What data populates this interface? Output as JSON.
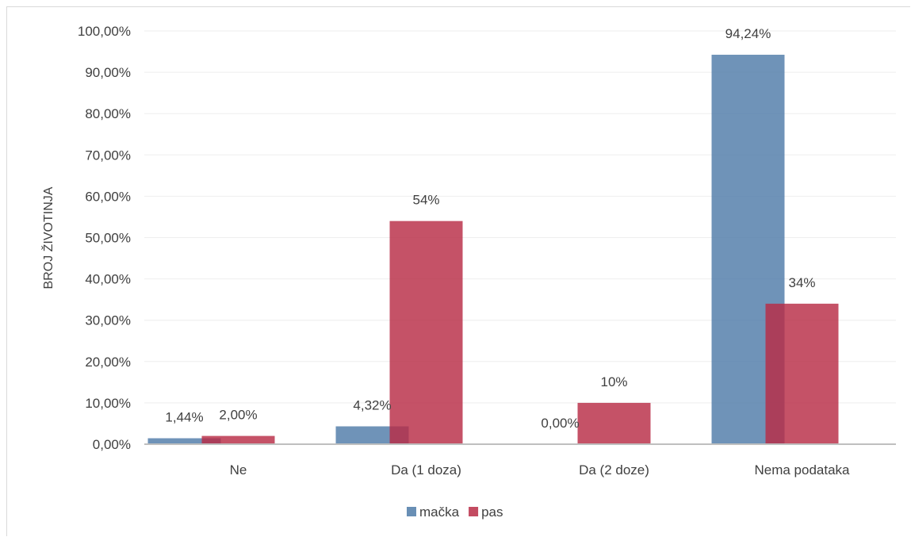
{
  "chart_data": {
    "type": "bar",
    "ylabel": "BROJ ŽIVOTINJA",
    "xlabel": "",
    "ylim": [
      0,
      100
    ],
    "yticks": [
      "0,00%",
      "10,00%",
      "20,00%",
      "30,00%",
      "40,00%",
      "50,00%",
      "60,00%",
      "70,00%",
      "80,00%",
      "90,00%",
      "100,00%"
    ],
    "categories": [
      "Ne",
      "Da (1 doza)",
      "Da (2 doze)",
      "Nema podataka"
    ],
    "series": [
      {
        "name": "mačka",
        "color": "#4f7ba8",
        "values": [
          1.44,
          4.32,
          0.0,
          94.24
        ],
        "labels": [
          "1,44%",
          "4,32%",
          "0,00%",
          "94,24%"
        ]
      },
      {
        "name": "pas",
        "color": "#b82c45",
        "values": [
          2.0,
          54,
          10,
          34
        ],
        "labels": [
          "2,00%",
          "54%",
          "10%",
          "34%"
        ]
      }
    ],
    "grid": true,
    "legend": "bottom"
  }
}
